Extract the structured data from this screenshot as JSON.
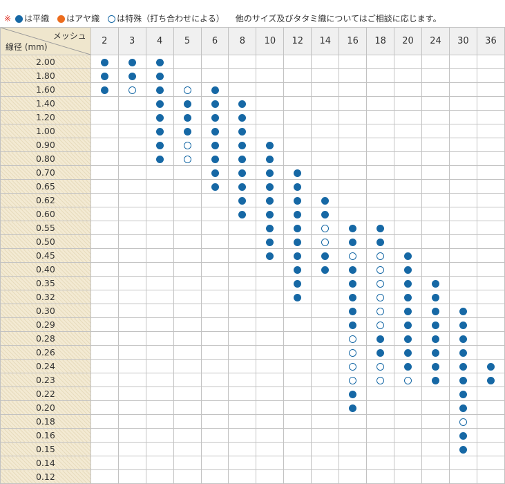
{
  "legend": {
    "note_mark": "※",
    "plain_label": "は平織",
    "twill_label": "はアヤ織",
    "special_label": "は特殊（打ち合わせによる）",
    "footnote": "他のサイズ及びタタミ織についてはご相談に応じます。",
    "colors": {
      "plain": "#1668a5",
      "twill": "#ec6c1d",
      "special_border": "#1668a5"
    }
  },
  "table": {
    "mesh_header": "メッシュ",
    "wire_header": "線径 (mm)",
    "meshes": [
      "2",
      "3",
      "4",
      "5",
      "6",
      "8",
      "10",
      "12",
      "14",
      "16",
      "18",
      "20",
      "24",
      "30",
      "36"
    ],
    "rows": [
      {
        "wire": "2.00",
        "cells": [
          "P",
          "P",
          "P",
          "",
          "",
          "",
          "",
          "",
          "",
          "",
          "",
          "",
          "",
          "",
          ""
        ]
      },
      {
        "wire": "1.80",
        "cells": [
          "P",
          "P",
          "P",
          "",
          "",
          "",
          "",
          "",
          "",
          "",
          "",
          "",
          "",
          "",
          ""
        ]
      },
      {
        "wire": "1.60",
        "cells": [
          "P",
          "S",
          "P",
          "S",
          "P",
          "",
          "",
          "",
          "",
          "",
          "",
          "",
          "",
          "",
          ""
        ]
      },
      {
        "wire": "1.40",
        "cells": [
          "",
          "",
          "P",
          "P",
          "P",
          "P",
          "",
          "",
          "",
          "",
          "",
          "",
          "",
          "",
          ""
        ]
      },
      {
        "wire": "1.20",
        "cells": [
          "",
          "",
          "P",
          "P",
          "P",
          "P",
          "",
          "",
          "",
          "",
          "",
          "",
          "",
          "",
          ""
        ]
      },
      {
        "wire": "1.00",
        "cells": [
          "",
          "",
          "P",
          "P",
          "P",
          "P",
          "",
          "",
          "",
          "",
          "",
          "",
          "",
          "",
          ""
        ]
      },
      {
        "wire": "0.90",
        "cells": [
          "",
          "",
          "P",
          "S",
          "P",
          "P",
          "P",
          "",
          "",
          "",
          "",
          "",
          "",
          "",
          ""
        ]
      },
      {
        "wire": "0.80",
        "cells": [
          "",
          "",
          "P",
          "S",
          "P",
          "P",
          "P",
          "",
          "",
          "",
          "",
          "",
          "",
          "",
          ""
        ]
      },
      {
        "wire": "0.70",
        "cells": [
          "",
          "",
          "",
          "",
          "P",
          "P",
          "P",
          "P",
          "",
          "",
          "",
          "",
          "",
          "",
          ""
        ]
      },
      {
        "wire": "0.65",
        "cells": [
          "",
          "",
          "",
          "",
          "P",
          "P",
          "P",
          "P",
          "",
          "",
          "",
          "",
          "",
          "",
          ""
        ]
      },
      {
        "wire": "0.62",
        "cells": [
          "",
          "",
          "",
          "",
          "",
          "P",
          "P",
          "P",
          "P",
          "",
          "",
          "",
          "",
          "",
          ""
        ]
      },
      {
        "wire": "0.60",
        "cells": [
          "",
          "",
          "",
          "",
          "",
          "P",
          "P",
          "P",
          "P",
          "",
          "",
          "",
          "",
          "",
          ""
        ]
      },
      {
        "wire": "0.55",
        "cells": [
          "",
          "",
          "",
          "",
          "",
          "",
          "P",
          "P",
          "S",
          "P",
          "P",
          "",
          "",
          "",
          ""
        ]
      },
      {
        "wire": "0.50",
        "cells": [
          "",
          "",
          "",
          "",
          "",
          "",
          "P",
          "P",
          "S",
          "P",
          "P",
          "",
          "",
          "",
          ""
        ]
      },
      {
        "wire": "0.45",
        "cells": [
          "",
          "",
          "",
          "",
          "",
          "",
          "P",
          "P",
          "P",
          "S",
          "S",
          "P",
          "",
          "",
          ""
        ]
      },
      {
        "wire": "0.40",
        "cells": [
          "",
          "",
          "",
          "",
          "",
          "",
          "",
          "P",
          "P",
          "P",
          "S",
          "P",
          "",
          "",
          ""
        ]
      },
      {
        "wire": "0.35",
        "cells": [
          "",
          "",
          "",
          "",
          "",
          "",
          "",
          "P",
          "",
          "P",
          "S",
          "P",
          "P",
          "",
          ""
        ]
      },
      {
        "wire": "0.32",
        "cells": [
          "",
          "",
          "",
          "",
          "",
          "",
          "",
          "P",
          "",
          "P",
          "S",
          "P",
          "P",
          "",
          ""
        ]
      },
      {
        "wire": "0.30",
        "cells": [
          "",
          "",
          "",
          "",
          "",
          "",
          "",
          "",
          "",
          "P",
          "S",
          "P",
          "P",
          "P",
          ""
        ]
      },
      {
        "wire": "0.29",
        "cells": [
          "",
          "",
          "",
          "",
          "",
          "",
          "",
          "",
          "",
          "P",
          "S",
          "P",
          "P",
          "P",
          ""
        ]
      },
      {
        "wire": "0.28",
        "cells": [
          "",
          "",
          "",
          "",
          "",
          "",
          "",
          "",
          "",
          "S",
          "P",
          "P",
          "P",
          "P",
          ""
        ]
      },
      {
        "wire": "0.26",
        "cells": [
          "",
          "",
          "",
          "",
          "",
          "",
          "",
          "",
          "",
          "S",
          "P",
          "P",
          "P",
          "P",
          ""
        ]
      },
      {
        "wire": "0.24",
        "cells": [
          "",
          "",
          "",
          "",
          "",
          "",
          "",
          "",
          "",
          "S",
          "S",
          "P",
          "P",
          "P",
          "P"
        ]
      },
      {
        "wire": "0.23",
        "cells": [
          "",
          "",
          "",
          "",
          "",
          "",
          "",
          "",
          "",
          "S",
          "S",
          "S",
          "P",
          "P",
          "P"
        ]
      },
      {
        "wire": "0.22",
        "cells": [
          "",
          "",
          "",
          "",
          "",
          "",
          "",
          "",
          "",
          "P",
          "",
          "",
          "",
          "P",
          ""
        ]
      },
      {
        "wire": "0.20",
        "cells": [
          "",
          "",
          "",
          "",
          "",
          "",
          "",
          "",
          "",
          "P",
          "",
          "",
          "",
          "P",
          ""
        ]
      },
      {
        "wire": "0.18",
        "cells": [
          "",
          "",
          "",
          "",
          "",
          "",
          "",
          "",
          "",
          "",
          "",
          "",
          "",
          "S",
          ""
        ]
      },
      {
        "wire": "0.16",
        "cells": [
          "",
          "",
          "",
          "",
          "",
          "",
          "",
          "",
          "",
          "",
          "",
          "",
          "",
          "P",
          ""
        ]
      },
      {
        "wire": "0.15",
        "cells": [
          "",
          "",
          "",
          "",
          "",
          "",
          "",
          "",
          "",
          "",
          "",
          "",
          "",
          "P",
          ""
        ]
      },
      {
        "wire": "0.14",
        "cells": [
          "",
          "",
          "",
          "",
          "",
          "",
          "",
          "",
          "",
          "",
          "",
          "",
          "",
          "",
          ""
        ]
      },
      {
        "wire": "0.12",
        "cells": [
          "",
          "",
          "",
          "",
          "",
          "",
          "",
          "",
          "",
          "",
          "",
          "",
          "",
          "",
          ""
        ]
      }
    ]
  }
}
